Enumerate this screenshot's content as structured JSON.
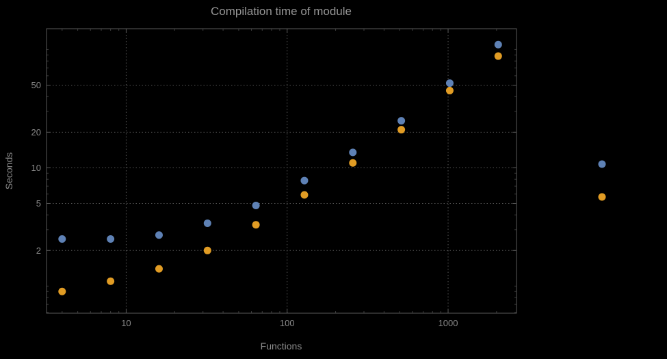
{
  "chart_data": {
    "type": "scatter",
    "title": "Compilation time of module",
    "xlabel": "Functions",
    "ylabel": "Seconds",
    "x_scale": "log",
    "y_scale": "log",
    "grid": true,
    "legend_position": "right-outside",
    "x_ticks": [
      10,
      100,
      1000
    ],
    "y_ticks": [
      2,
      5,
      10,
      20,
      50
    ],
    "x_range": [
      3.2,
      2660
    ],
    "y_range": [
      0.59,
      150
    ],
    "x": [
      4,
      8,
      16,
      32,
      64,
      128,
      256,
      512,
      1024,
      2048
    ],
    "series": [
      {
        "name": "blue",
        "color": "#5e81b5",
        "values": [
          2.5,
          2.5,
          2.7,
          3.4,
          4.8,
          7.8,
          13.5,
          25,
          52,
          110
        ]
      },
      {
        "name": "orange",
        "color": "#e19c24",
        "values": [
          0.9,
          1.1,
          1.4,
          2.0,
          3.3,
          5.9,
          11,
          21,
          45,
          88
        ]
      }
    ],
    "legend_markers": [
      {
        "name": "blue",
        "color": "#5e81b5"
      },
      {
        "name": "orange",
        "color": "#e19c24"
      }
    ]
  },
  "style": {
    "background": "#000000",
    "frame_color": "#5a5a5a",
    "grid_color": "#585858",
    "tick_label_color": "#8a8a8a",
    "title_color": "#969696",
    "axis_label_color": "#8a8a8a",
    "point_radius": 5.5
  }
}
